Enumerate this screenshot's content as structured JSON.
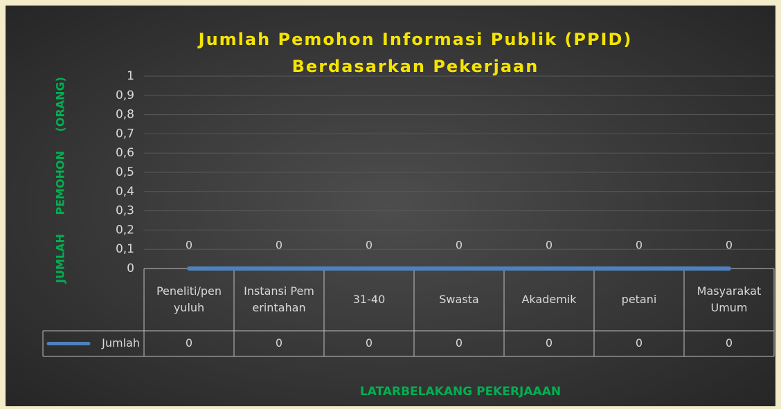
{
  "chart_data": {
    "type": "line",
    "title": [
      "Jumlah Pemohon Informasi Publik (PPID)",
      "Berdasarkan Pekerjaan"
    ],
    "y_label": "JUMLAH PEMOHON (ORANG)",
    "x_label": "LATARBELAKANG PEKERJAAAN",
    "categories": [
      "Peneliti/penyuluh",
      "Instansi Pemerintahan",
      "31-40",
      "Swasta",
      "Akademik",
      "petani",
      "Masyarakat Umum"
    ],
    "series": [
      {
        "name": "Jumlah",
        "color": "#4f81bd",
        "values": [
          0,
          0,
          0,
          0,
          0,
          0,
          0
        ]
      }
    ],
    "ylim": [
      0,
      1
    ],
    "yticks": [
      0,
      {
        "value": 0.1,
        "label": "0,1"
      },
      {
        "value": 0.2,
        "label": "0,2"
      },
      {
        "value": 0.3,
        "label": "0,3"
      },
      {
        "value": 0.4,
        "label": "0,4"
      },
      {
        "value": 0.5,
        "label": "0,5"
      },
      {
        "value": 0.6,
        "label": "0,6"
      },
      {
        "value": 0.7,
        "label": "0,7"
      },
      {
        "value": 0.8,
        "label": "0,8"
      },
      {
        "value": 0.9,
        "label": "0,9"
      },
      1
    ],
    "grid": true,
    "data_table": true
  }
}
